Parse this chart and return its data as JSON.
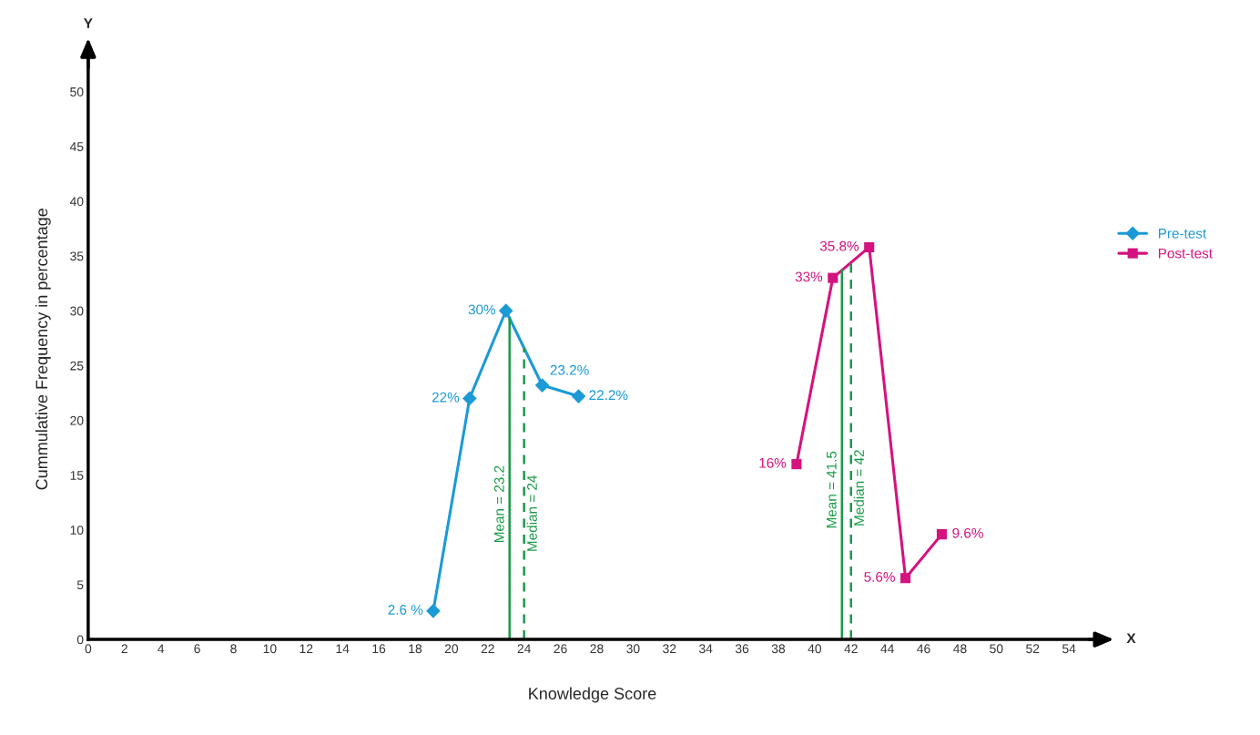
{
  "chart_data": {
    "type": "line",
    "xlabel": "Knowledge Score",
    "ylabel": "Cummulative Frequency in percentage",
    "xlim": [
      0,
      55.5
    ],
    "xticks": [
      0,
      2,
      4,
      6,
      8,
      10,
      12,
      14,
      16,
      18,
      20,
      22,
      24,
      26,
      28,
      30,
      32,
      34,
      36,
      38,
      40,
      42,
      44,
      46,
      48,
      50,
      52,
      54
    ],
    "ylim": [
      0,
      53
    ],
    "yticks": [
      0,
      5,
      10,
      15,
      20,
      25,
      30,
      35,
      40,
      45,
      50
    ],
    "series": [
      {
        "name": "Pre-test",
        "color": "#1b9ad6",
        "marker": "diamond",
        "x": [
          19,
          21,
          23,
          25,
          27
        ],
        "values": [
          2.6,
          22,
          30,
          23.2,
          22.2
        ],
        "value_labels": [
          "2.6 %",
          "22%",
          "30%",
          "23.2%",
          "22.2%"
        ]
      },
      {
        "name": "Post-test",
        "color": "#d4137f",
        "marker": "square",
        "x": [
          39,
          41,
          43,
          45,
          47
        ],
        "values": [
          16,
          33,
          35.8,
          5.6,
          9.6
        ],
        "value_labels": [
          "16%",
          "33%",
          "35.8%",
          "5.6%",
          "9.6%"
        ]
      }
    ],
    "ref_lines": [
      {
        "axis": "x",
        "value": 23.2,
        "label": "Mean = 23.2",
        "color": "#1a9a48",
        "line_style": "solid"
      },
      {
        "axis": "x",
        "value": 24,
        "label": "Median = 24",
        "color": "#1a9a48",
        "line_style": "dashed"
      },
      {
        "axis": "x",
        "value": 41.5,
        "label": "Mean = 41.5",
        "color": "#1a9a48",
        "line_style": "solid"
      },
      {
        "axis": "x",
        "value": 42,
        "label": "Median = 42",
        "color": "#1a9a48",
        "line_style": "dashed"
      }
    ],
    "annotations": [
      "Y",
      "X"
    ],
    "legend": "right",
    "grid": false
  }
}
